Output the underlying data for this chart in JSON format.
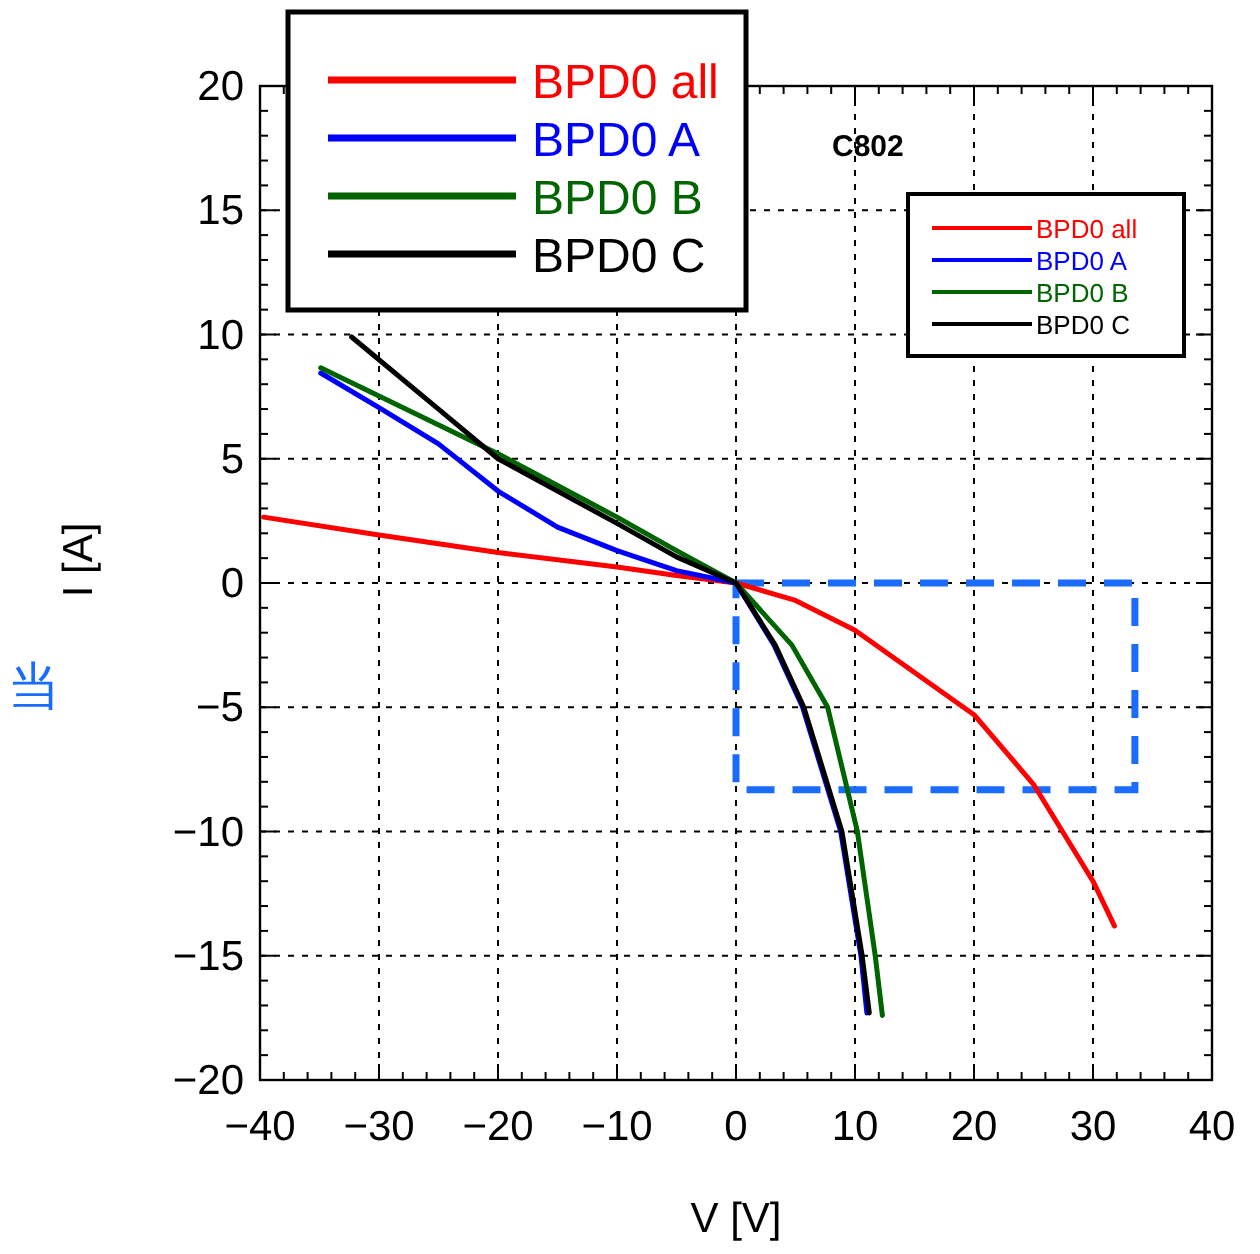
{
  "chart_data": {
    "type": "line",
    "xlabel": "V [V]",
    "ylabel": "I [A]",
    "xlim": [
      -40,
      40
    ],
    "ylim": [
      -20,
      20
    ],
    "xticks": [
      -40,
      -30,
      -20,
      -10,
      0,
      10,
      20,
      30,
      40
    ],
    "yticks": [
      -20,
      -15,
      -10,
      -5,
      0,
      5,
      10,
      15,
      20
    ],
    "grid": true,
    "legend": "top right",
    "line_style": "solid",
    "marker": "none",
    "annotations": [
      "C802",
      "当"
    ],
    "series": [
      {
        "name": "BPD0 all",
        "color": "#ff0000",
        "x": [
          -39.7,
          -30,
          -20,
          -10,
          -5,
          0,
          5,
          10,
          20,
          25,
          30,
          31.8
        ],
        "values": [
          2.65,
          1.93,
          1.23,
          0.64,
          0.3,
          0,
          -0.7,
          -1.9,
          -5.3,
          -8.1,
          -12.0,
          -13.8
        ]
      },
      {
        "name": "BPD0 A",
        "color": "#0000ff",
        "x": [
          -34.9,
          -30,
          -25,
          -20,
          -15,
          -10,
          -5,
          0,
          3.2,
          5.6,
          8.8,
          10.5,
          11.0
        ],
        "values": [
          8.45,
          7.06,
          5.6,
          3.7,
          2.25,
          1.3,
          0.5,
          0,
          -2.5,
          -5,
          -10,
          -15,
          -17.3
        ]
      },
      {
        "name": "BPD0 B",
        "color": "#006400",
        "x": [
          -34.9,
          -20,
          -10,
          -5,
          0,
          4.7,
          7.7,
          10.2,
          11.7,
          12.3
        ],
        "values": [
          8.66,
          5.2,
          2.65,
          1.3,
          0,
          -2.5,
          -5,
          -10,
          -15,
          -17.4
        ]
      },
      {
        "name": "BPD0 C",
        "color": "#000000",
        "x": [
          -32.3,
          -25,
          -20,
          -10,
          -5,
          0,
          3.3,
          5.7,
          8.9,
          10.6,
          11.2
        ],
        "values": [
          9.9,
          7.0,
          5.0,
          2.4,
          1.05,
          0,
          -2.5,
          -5,
          -10,
          -15,
          -17.3
        ]
      }
    ]
  }
}
